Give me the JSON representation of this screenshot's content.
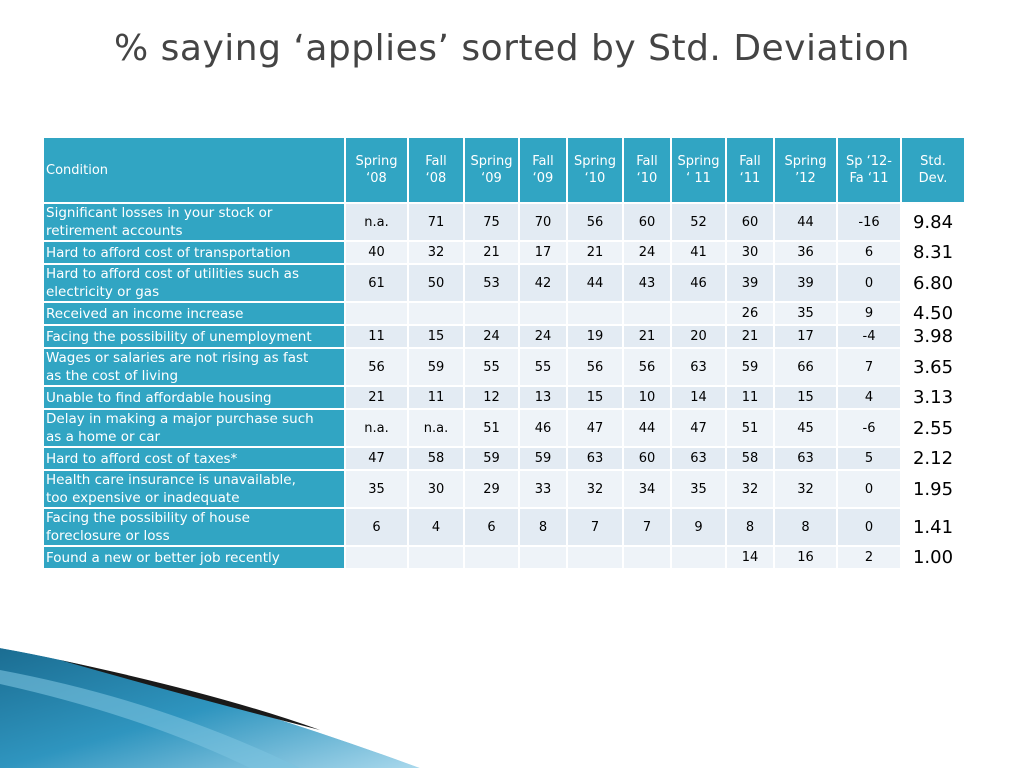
{
  "title": "% saying ‘applies’ sorted by Std. Deviation",
  "table": {
    "headers": [
      "Condition",
      "Spring\n‘08",
      "Fall\n‘08",
      "Spring\n‘09",
      "Fall\n‘09",
      "Spring\n‘10",
      "Fall\n‘10",
      "Spring\n‘ 11",
      "Fall\n‘11",
      "Spring\n’12",
      "Sp ‘12-\nFa ‘11",
      "Std.\nDev."
    ],
    "rows": [
      {
        "condition": "Significant losses in your stock or\nretirement accounts",
        "values": [
          "n.a.",
          "71",
          "75",
          "70",
          "56",
          "60",
          "52",
          "60",
          "44",
          "-16"
        ],
        "sd": "9.84"
      },
      {
        "condition": "Hard to afford cost of transportation",
        "values": [
          "40",
          "32",
          "21",
          "17",
          "21",
          "24",
          "41",
          "30",
          "36",
          "6"
        ],
        "sd": "8.31"
      },
      {
        "condition": "Hard to afford cost of utilities such as\nelectricity or gas",
        "values": [
          "61",
          "50",
          "53",
          "42",
          "44",
          "43",
          "46",
          "39",
          "39",
          "0"
        ],
        "sd": "6.80"
      },
      {
        "condition": "Received an income increase",
        "values": [
          "",
          "",
          "",
          "",
          "",
          "",
          "",
          "26",
          "35",
          "9"
        ],
        "sd": "4.50"
      },
      {
        "condition": "Facing the possibility of unemployment",
        "values": [
          "11",
          "15",
          "24",
          "24",
          "19",
          "21",
          "20",
          "21",
          "17",
          "-4"
        ],
        "sd": "3.98"
      },
      {
        "condition": "Wages or salaries are not rising as fast\nas the cost of living",
        "values": [
          "56",
          "59",
          "55",
          "55",
          "56",
          "56",
          "63",
          "59",
          "66",
          "7"
        ],
        "sd": "3.65"
      },
      {
        "condition": "Unable to find affordable housing",
        "values": [
          "21",
          "11",
          "12",
          "13",
          "15",
          "10",
          "14",
          "11",
          "15",
          "4"
        ],
        "sd": "3.13"
      },
      {
        "condition": "Delay in making a major purchase such\nas a home or car",
        "values": [
          "n.a.",
          "n.a.",
          "51",
          "46",
          "47",
          "44",
          "47",
          "51",
          "45",
          "-6"
        ],
        "sd": "2.55"
      },
      {
        "condition": "Hard to afford cost of taxes*",
        "values": [
          "47",
          "58",
          "59",
          "59",
          "63",
          "60",
          "63",
          "58",
          "63",
          "5"
        ],
        "sd": "2.12"
      },
      {
        "condition": "Health care insurance is unavailable,\ntoo expensive or inadequate",
        "values": [
          "35",
          "30",
          "29",
          "33",
          "32",
          "34",
          "35",
          "32",
          "32",
          "0"
        ],
        "sd": "1.95"
      },
      {
        "condition": "Facing the possibility of house\nforeclosure or loss",
        "values": [
          "6",
          "4",
          "6",
          "8",
          "7",
          "7",
          "9",
          "8",
          "8",
          "0"
        ],
        "sd": "1.41"
      },
      {
        "condition": "Found a new or better job recently",
        "values": [
          "",
          "",
          "",
          "",
          "",
          "",
          "",
          "14",
          "16",
          "2"
        ],
        "sd": "1.00"
      }
    ]
  },
  "colors": {
    "header_bg": "#31a5c3",
    "cell_bg": "#e3ebf3",
    "accent_dark": "#1a1a1a"
  }
}
